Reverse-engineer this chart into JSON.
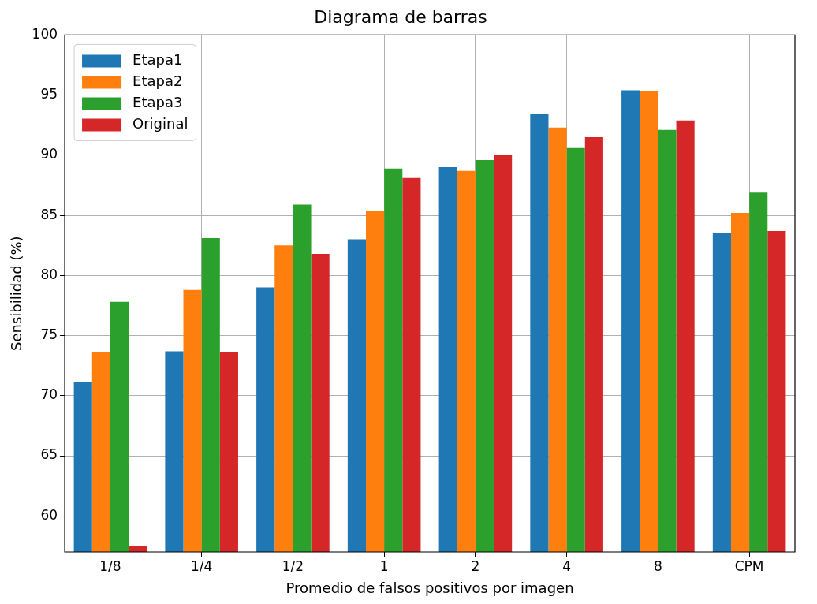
{
  "chart_data": {
    "type": "bar",
    "title": "Diagrama de barras",
    "xlabel": "Promedio de falsos positivos por imagen",
    "ylabel": "Sensibilidad (%)",
    "categories": [
      "1/8",
      "1/4",
      "1/2",
      "1",
      "2",
      "4",
      "8",
      "CPM"
    ],
    "series": [
      {
        "name": "Etapa1",
        "color": "#1f77b4",
        "values": [
          71.1,
          73.7,
          79.0,
          83.0,
          89.0,
          93.4,
          95.4,
          83.5
        ]
      },
      {
        "name": "Etapa2",
        "color": "#ff7f0e",
        "values": [
          73.6,
          78.8,
          82.5,
          85.4,
          88.7,
          92.3,
          95.3,
          85.2
        ]
      },
      {
        "name": "Etapa3",
        "color": "#2ca02c",
        "values": [
          77.8,
          83.1,
          85.9,
          88.9,
          89.6,
          90.6,
          92.1,
          86.9
        ]
      },
      {
        "name": "Original",
        "color": "#d62728",
        "values": [
          57.5,
          73.6,
          81.8,
          88.1,
          90.0,
          91.5,
          92.9,
          83.7
        ]
      }
    ],
    "ylim": [
      57,
      100
    ],
    "yticks": [
      60,
      65,
      70,
      75,
      80,
      85,
      90,
      95,
      100
    ],
    "grid": true,
    "legend": "top left"
  }
}
